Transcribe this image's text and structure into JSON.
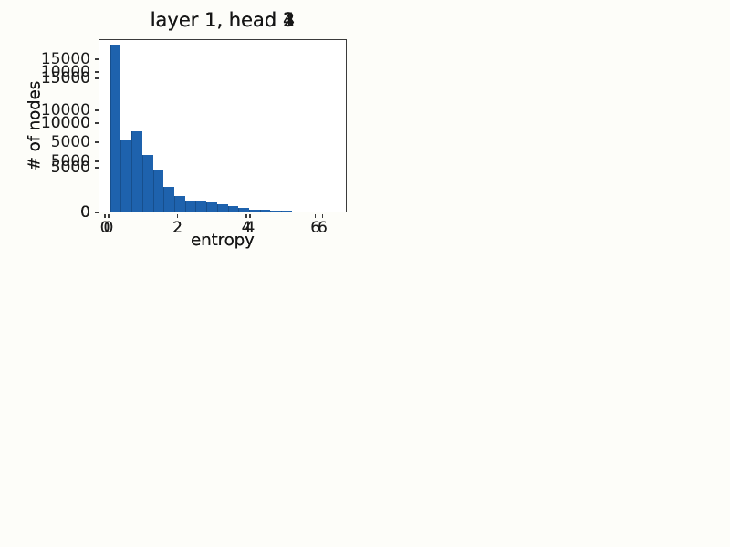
{
  "figure": {
    "background_color": "#fdfdf9",
    "bar_color": "#1e62ad",
    "bar_edge_color": "#174f8d",
    "axis_color": "#3b3b3b",
    "text_color": "#161616"
  },
  "chart_data": [
    {
      "type": "bar",
      "variant": "histogram",
      "title": "layer 1, head 1",
      "xlabel": "entropy",
      "ylabel": "# of nodes",
      "grid": false,
      "legend": null,
      "xticks": [
        0,
        2,
        4,
        6
      ],
      "yticks": [
        0,
        5000,
        10000
      ],
      "xlim": [
        -0.18,
        6.67
      ],
      "ylim": [
        0,
        12350
      ],
      "bins": {
        "start": 0.1,
        "width": 0.31
      },
      "counts": [
        11700,
        6250,
        8150,
        7450,
        6850,
        4750,
        3050,
        1950,
        1750,
        1350,
        1100,
        800,
        630,
        410,
        210,
        190,
        110,
        90,
        50,
        30
      ]
    },
    {
      "type": "bar",
      "variant": "histogram",
      "title": "layer 1, head 2",
      "xlabel": "entropy",
      "ylabel": "# of nodes",
      "grid": false,
      "legend": null,
      "xticks": [
        0,
        2,
        4,
        6
      ],
      "yticks": [
        0,
        5000,
        10000,
        15000
      ],
      "xlim": [
        -0.29,
        6.91
      ],
      "ylim": [
        0,
        16950
      ],
      "bins": {
        "start": 0.02,
        "width": 0.31
      },
      "counts": [
        16200,
        6800,
        8450,
        6500,
        5500,
        3700,
        2600,
        1500,
        1400,
        1100,
        860,
        650,
        500,
        270,
        140,
        120,
        60,
        40,
        25,
        15
      ]
    },
    {
      "type": "bar",
      "variant": "histogram",
      "title": "layer 1, head 3",
      "xlabel": "entropy",
      "ylabel": "# of nodes",
      "grid": false,
      "legend": null,
      "xticks": [
        0,
        2,
        4,
        6
      ],
      "yticks": [
        0,
        5000,
        10000,
        15000
      ],
      "xlim": [
        -0.18,
        6.67
      ],
      "ylim": [
        0,
        19390
      ],
      "bins": {
        "start": 0.1,
        "width": 0.31
      },
      "counts": [
        18700,
        7800,
        8550,
        6100,
        4800,
        2800,
        2100,
        1200,
        1050,
        1000,
        980,
        750,
        550,
        240,
        220,
        110,
        90,
        50,
        30,
        15
      ]
    },
    {
      "type": "bar",
      "variant": "histogram",
      "title": "layer 1, head 4",
      "xlabel": "entropy",
      "ylabel": "# of nodes",
      "grid": false,
      "legend": null,
      "xticks": [
        0,
        2,
        4,
        6
      ],
      "yticks": [
        0,
        5000,
        10000,
        15000
      ],
      "xlim": [
        -0.29,
        6.91
      ],
      "ylim": [
        0,
        19390
      ],
      "bins": {
        "start": 0.02,
        "width": 0.31
      },
      "counts": [
        18700,
        8000,
        9000,
        6300,
        4700,
        2800,
        1750,
        1270,
        1150,
        1050,
        820,
        580,
        380,
        200,
        190,
        80,
        60,
        40,
        20,
        10
      ]
    }
  ]
}
